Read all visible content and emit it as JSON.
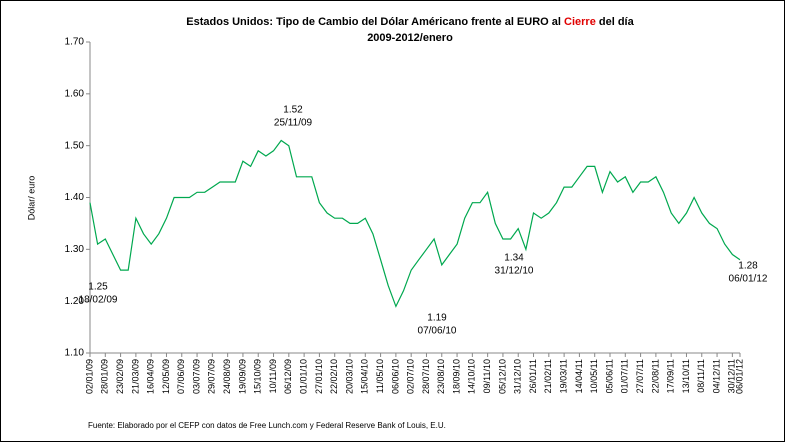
{
  "chart_data": {
    "type": "line",
    "title_parts": [
      "Estados Unidos: Tipo de Cambio del Dólar Américano frente al EURO al ",
      "Cierre",
      " del día"
    ],
    "subtitle": "2009-2012/enero",
    "y_label": "Dólar/ euro",
    "source": "Fuente: Elaborado por el CEFP con datos de Free Lunch.com y Federal Reserve Bank of Louis, E.U.",
    "categories": [
      "02/01/09",
      null,
      "28/01/09",
      null,
      "23/02/09",
      null,
      "21/03/09",
      null,
      "16/04/09",
      null,
      "12/05/09",
      null,
      "07/06/09",
      null,
      "03/07/09",
      null,
      "29/07/09",
      null,
      "24/08/09",
      null,
      "19/09/09",
      null,
      "15/10/09",
      null,
      "10/11/09",
      null,
      "06/12/09",
      null,
      "01/01/10",
      null,
      "27/01/10",
      null,
      "22/02/10",
      null,
      "20/03/10",
      null,
      "15/04/10",
      null,
      "11/05/10",
      null,
      "06/06/10",
      null,
      "02/07/10",
      null,
      "28/07/10",
      null,
      "23/08/10",
      null,
      "18/09/10",
      null,
      "14/10/10",
      null,
      "09/11/10",
      null,
      "05/12/10",
      null,
      "31/12/10",
      null,
      "26/01/11",
      null,
      "21/02/11",
      null,
      "19/03/11",
      null,
      "14/04/11",
      null,
      "10/05/11",
      null,
      "05/06/11",
      null,
      "01/07/11",
      null,
      "27/07/11",
      null,
      "22/08/11",
      null,
      "17/09/11",
      null,
      "13/10/11",
      null,
      "08/11/11",
      null,
      "04/12/11",
      null,
      "30/12/11",
      "06/01/12"
    ],
    "series": [
      {
        "name": "Dólar/ euro",
        "color": "#00a84f",
        "values": [
          1.39,
          1.31,
          1.32,
          1.29,
          1.26,
          1.26,
          1.36,
          1.33,
          1.31,
          1.33,
          1.36,
          1.4,
          1.4,
          1.4,
          1.41,
          1.41,
          1.42,
          1.43,
          1.43,
          1.43,
          1.47,
          1.46,
          1.49,
          1.48,
          1.49,
          1.51,
          1.5,
          1.44,
          1.44,
          1.44,
          1.39,
          1.37,
          1.36,
          1.36,
          1.35,
          1.35,
          1.36,
          1.33,
          1.28,
          1.23,
          1.19,
          1.22,
          1.26,
          1.28,
          1.3,
          1.32,
          1.27,
          1.29,
          1.31,
          1.36,
          1.39,
          1.39,
          1.41,
          1.35,
          1.32,
          1.32,
          1.34,
          1.3,
          1.37,
          1.36,
          1.37,
          1.39,
          1.42,
          1.42,
          1.44,
          1.46,
          1.46,
          1.41,
          1.45,
          1.43,
          1.44,
          1.41,
          1.43,
          1.43,
          1.44,
          1.41,
          1.37,
          1.35,
          1.37,
          1.4,
          1.37,
          1.35,
          1.34,
          1.31,
          1.29,
          1.28
        ]
      }
    ],
    "annotations": [
      {
        "value": "1.25",
        "date": "18/02/09"
      },
      {
        "value": "1.52",
        "date": "25/11/09"
      },
      {
        "value": "1.19",
        "date": "07/06/10"
      },
      {
        "value": "1.34",
        "date": "31/12/10"
      },
      {
        "value": "1.28",
        "date": "06/01/12"
      }
    ],
    "ylim": [
      1.1,
      1.7
    ],
    "yticks": [
      {
        "value": 1.1,
        "label": "1.10"
      },
      {
        "value": 1.2,
        "label": "1.20"
      },
      {
        "value": 1.3,
        "label": "1.30"
      },
      {
        "value": 1.4,
        "label": "1.40"
      },
      {
        "value": 1.5,
        "label": "1.50"
      },
      {
        "value": 1.6,
        "label": "1.60"
      },
      {
        "value": 1.7,
        "label": "1.70"
      }
    ],
    "grid": false
  }
}
